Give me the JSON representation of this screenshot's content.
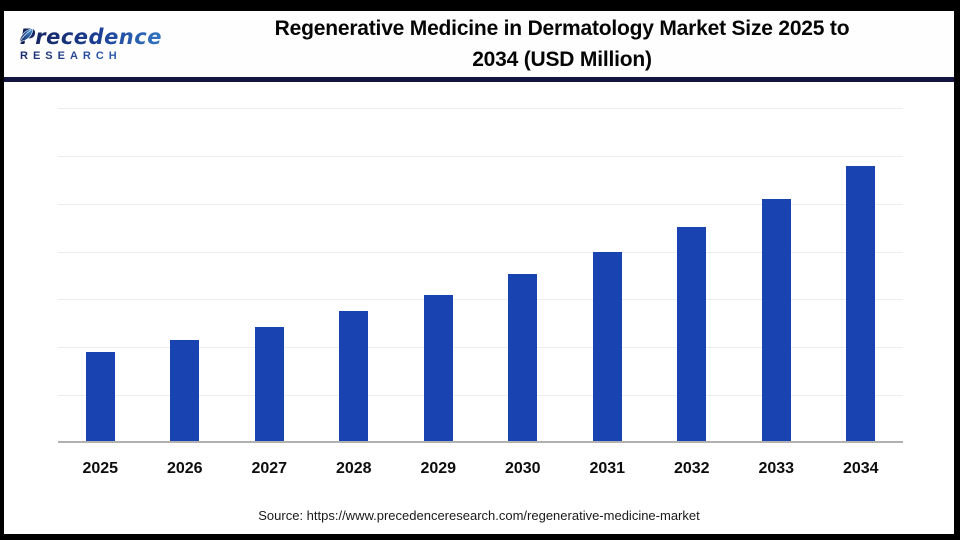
{
  "header": {
    "logo": {
      "brand": "Precedence",
      "sub": "RESEARCH"
    },
    "title_line1": "Regenerative Medicine in Dermatology Market Size 2025 to",
    "title_line2": "2034 (USD Million)"
  },
  "chart_data": {
    "type": "bar",
    "title": "Regenerative Medicine in Dermatology Market Size 2025 to 2034 (USD Million)",
    "categories": [
      "2025",
      "2026",
      "2027",
      "2028",
      "2029",
      "2030",
      "2031",
      "2032",
      "2033",
      "2034"
    ],
    "values": [
      1.86,
      2.11,
      2.38,
      2.72,
      3.05,
      3.49,
      3.96,
      4.47,
      5.06,
      5.74
    ],
    "value_unit_note": "no y-axis tick labels or data labels are shown in the image; values are relative heights estimated in gridline units (1 = one gridline interval)",
    "xlabel": "",
    "ylabel": "",
    "ylim": [
      0,
      7
    ],
    "gridlines": "horizontal, 7 intervals, light gray",
    "legend": false,
    "bar_color": "#1843b0"
  },
  "footer": {
    "source": "Source: https://www.precedenceresearch.com/regenerative-medicine-market"
  },
  "colors": {
    "bar": "#1843b0",
    "header_separator": "#141440",
    "axis_line": "#b1b1b1",
    "gridline": "#ededed",
    "logo_dark": "#121f56",
    "logo_light": "#3e8fd9"
  }
}
